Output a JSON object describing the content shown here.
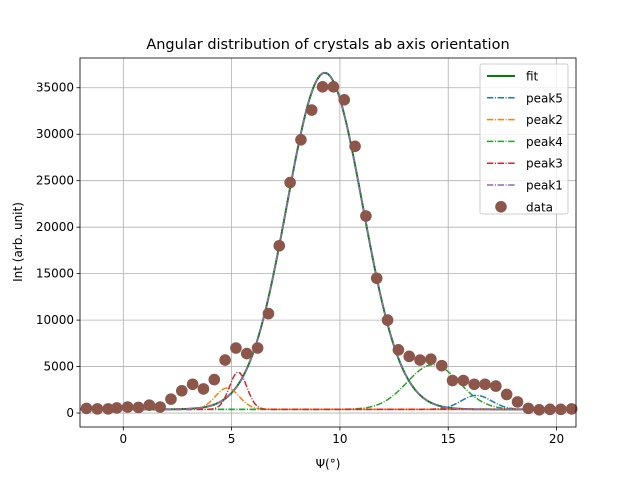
{
  "chart_data": {
    "type": "line",
    "title": "Angular distribution of crystals ab axis orientation",
    "xlabel": "Ψ(°)",
    "ylabel": "Int (arb. unit)",
    "xlim": [
      -2.0,
      20.9
    ],
    "ylim": [
      -1500,
      38200
    ],
    "xticks": [
      0,
      5,
      10,
      15,
      20
    ],
    "yticks": [
      0,
      5000,
      10000,
      15000,
      20000,
      25000,
      30000,
      35000
    ],
    "grid": true,
    "legend_position": "top-right",
    "baseline": 400,
    "curves": [
      {
        "name": "fit",
        "color": "#008000",
        "style": "solid",
        "center": 9.3,
        "amplitude": 36200,
        "sigma": 1.75
      },
      {
        "name": "peak5",
        "color": "#1f77b4",
        "style": "dashdot",
        "center": 16.3,
        "amplitude": 1500,
        "sigma": 0.7
      },
      {
        "name": "peak2",
        "color": "#ff7f0e",
        "style": "dashdot",
        "center": 4.8,
        "amplitude": 2300,
        "sigma": 0.55
      },
      {
        "name": "peak4",
        "color": "#2ca02c",
        "style": "dashdot",
        "center": 14.3,
        "amplitude": 4800,
        "sigma": 1.2
      },
      {
        "name": "peak3",
        "color": "#d62728",
        "style": "dashdot",
        "center": 5.3,
        "amplitude": 4000,
        "sigma": 0.4
      },
      {
        "name": "peak1",
        "color": "#9467bd",
        "style": "dashdot",
        "center": 9.3,
        "amplitude": 36200,
        "sigma": 1.75
      }
    ],
    "data_series": {
      "name": "data",
      "color": "#8c564b",
      "points": [
        [
          -1.7,
          500
        ],
        [
          -1.2,
          450
        ],
        [
          -0.7,
          450
        ],
        [
          -0.3,
          550
        ],
        [
          0.2,
          650
        ],
        [
          0.7,
          600
        ],
        [
          1.2,
          850
        ],
        [
          1.7,
          650
        ],
        [
          2.2,
          1500
        ],
        [
          2.7,
          2400
        ],
        [
          3.2,
          3100
        ],
        [
          3.7,
          2600
        ],
        [
          4.2,
          3600
        ],
        [
          4.7,
          5700
        ],
        [
          5.2,
          7000
        ],
        [
          5.7,
          6400
        ],
        [
          6.2,
          7000
        ],
        [
          6.7,
          10700
        ],
        [
          7.2,
          18000
        ],
        [
          7.7,
          24800
        ],
        [
          8.2,
          29400
        ],
        [
          8.7,
          32600
        ],
        [
          9.2,
          35100
        ],
        [
          9.7,
          35100
        ],
        [
          10.2,
          33700
        ],
        [
          10.7,
          28700
        ],
        [
          11.2,
          21200
        ],
        [
          11.7,
          14500
        ],
        [
          12.2,
          10000
        ],
        [
          12.7,
          6800
        ],
        [
          13.2,
          6100
        ],
        [
          13.7,
          5700
        ],
        [
          14.2,
          5800
        ],
        [
          14.7,
          5100
        ],
        [
          15.2,
          3500
        ],
        [
          15.7,
          3500
        ],
        [
          16.2,
          3100
        ],
        [
          16.7,
          3100
        ],
        [
          17.2,
          2900
        ],
        [
          17.7,
          2000
        ],
        [
          18.2,
          1200
        ],
        [
          18.7,
          500
        ],
        [
          19.2,
          350
        ],
        [
          19.7,
          400
        ],
        [
          20.2,
          400
        ],
        [
          20.7,
          450
        ]
      ]
    }
  }
}
